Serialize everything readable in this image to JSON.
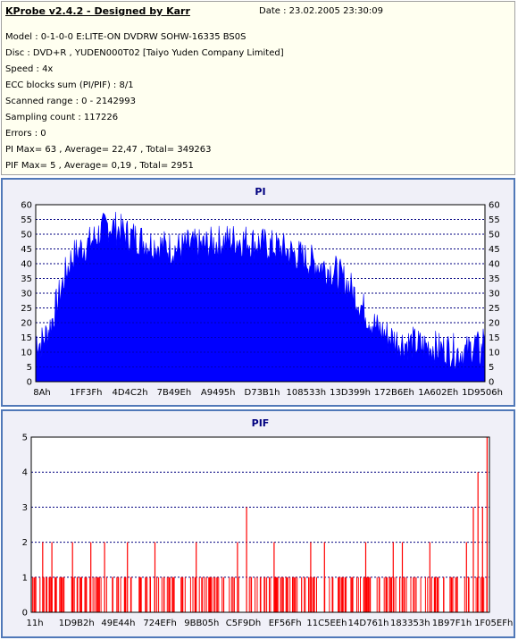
{
  "header": {
    "app_title": "KProbe v2.4.2 - Designed by Karr",
    "date": "Date : 23.02.2005 23:30:09",
    "lines": [
      "Model : 0-1-0-0 E:LITE-ON DVDRW SOHW-16335 BS0S",
      "Disc : DVD+R , YUDEN000T02 [Taiyo Yuden Company Limited]",
      "Speed : 4x",
      "ECC blocks sum (PI/PIF) : 8/1",
      "Scanned range : 0 - 2142993",
      "Sampling count : 117226",
      "Errors : 0",
      "PI Max= 63 , Average= 22,47 , Total= 349263",
      "PIF Max= 5 , Average= 0,19 , Total= 2951"
    ]
  },
  "chart_data": [
    {
      "type": "area",
      "title": "PI",
      "series_color": "#0000ff",
      "ylim": [
        0,
        60
      ],
      "y_ticks": [
        0,
        5,
        10,
        15,
        20,
        25,
        30,
        35,
        40,
        45,
        50,
        55,
        60
      ],
      "x_tick_labels": [
        "8Ah",
        "1FF3Fh",
        "4D4C2h",
        "7B49Eh",
        "A9495h",
        "D73B1h",
        "108533h",
        "13D399h",
        "172B6Eh",
        "1A602Eh",
        "1D9506h"
      ],
      "x": [
        0,
        0.01,
        0.02,
        0.035,
        0.05,
        0.065,
        0.08,
        0.1,
        0.12,
        0.14,
        0.16,
        0.18,
        0.2,
        0.22,
        0.25,
        0.28,
        0.31,
        0.34,
        0.37,
        0.4,
        0.43,
        0.46,
        0.49,
        0.52,
        0.55,
        0.58,
        0.61,
        0.64,
        0.67,
        0.7,
        0.72,
        0.74,
        0.76,
        0.78,
        0.8,
        0.82,
        0.84,
        0.86,
        0.88,
        0.9,
        0.92,
        0.94,
        0.96,
        0.98,
        0.99,
        1.0
      ],
      "values": [
        15,
        13,
        15,
        20,
        28,
        36,
        42,
        45,
        47,
        50,
        53,
        52,
        50,
        49,
        47,
        46,
        45,
        46,
        46,
        47,
        48,
        48,
        47,
        46,
        45,
        43,
        41,
        39,
        37,
        32,
        27,
        22,
        18,
        16,
        14,
        13,
        13,
        12,
        12,
        11,
        11,
        10,
        10,
        13,
        9,
        18
      ],
      "annotations": {
        "max": 63
      }
    },
    {
      "type": "bar",
      "title": "PIF",
      "series_color": "#ff0000",
      "ylim": [
        0,
        5
      ],
      "y_ticks": [
        0,
        1,
        2,
        3,
        4,
        5
      ],
      "x_tick_labels": [
        "11h",
        "1D9B2h",
        "49E44h",
        "724EFh",
        "9BB05h",
        "C5F9Dh",
        "EF56Fh",
        "11C5EEh",
        "14D761h",
        "183353h",
        "1B97F1h",
        "1F05EFh"
      ],
      "spikes": [
        {
          "x": 0.01,
          "y": 1
        },
        {
          "x": 0.025,
          "y": 2
        },
        {
          "x": 0.045,
          "y": 2
        },
        {
          "x": 0.07,
          "y": 1
        },
        {
          "x": 0.09,
          "y": 2
        },
        {
          "x": 0.11,
          "y": 1
        },
        {
          "x": 0.13,
          "y": 2
        },
        {
          "x": 0.16,
          "y": 2
        },
        {
          "x": 0.19,
          "y": 1
        },
        {
          "x": 0.21,
          "y": 2
        },
        {
          "x": 0.24,
          "y": 1
        },
        {
          "x": 0.27,
          "y": 2
        },
        {
          "x": 0.3,
          "y": 1
        },
        {
          "x": 0.33,
          "y": 1
        },
        {
          "x": 0.36,
          "y": 2
        },
        {
          "x": 0.39,
          "y": 1
        },
        {
          "x": 0.42,
          "y": 1
        },
        {
          "x": 0.45,
          "y": 2
        },
        {
          "x": 0.47,
          "y": 3
        },
        {
          "x": 0.5,
          "y": 1
        },
        {
          "x": 0.53,
          "y": 2
        },
        {
          "x": 0.56,
          "y": 1
        },
        {
          "x": 0.59,
          "y": 1
        },
        {
          "x": 0.61,
          "y": 2
        },
        {
          "x": 0.64,
          "y": 2
        },
        {
          "x": 0.67,
          "y": 1
        },
        {
          "x": 0.7,
          "y": 1
        },
        {
          "x": 0.73,
          "y": 2
        },
        {
          "x": 0.76,
          "y": 1
        },
        {
          "x": 0.79,
          "y": 2
        },
        {
          "x": 0.81,
          "y": 2
        },
        {
          "x": 0.84,
          "y": 1
        },
        {
          "x": 0.87,
          "y": 2
        },
        {
          "x": 0.9,
          "y": 1
        },
        {
          "x": 0.93,
          "y": 1
        },
        {
          "x": 0.95,
          "y": 2
        },
        {
          "x": 0.965,
          "y": 3
        },
        {
          "x": 0.975,
          "y": 4
        },
        {
          "x": 0.985,
          "y": 3
        },
        {
          "x": 0.995,
          "y": 5
        }
      ]
    }
  ]
}
